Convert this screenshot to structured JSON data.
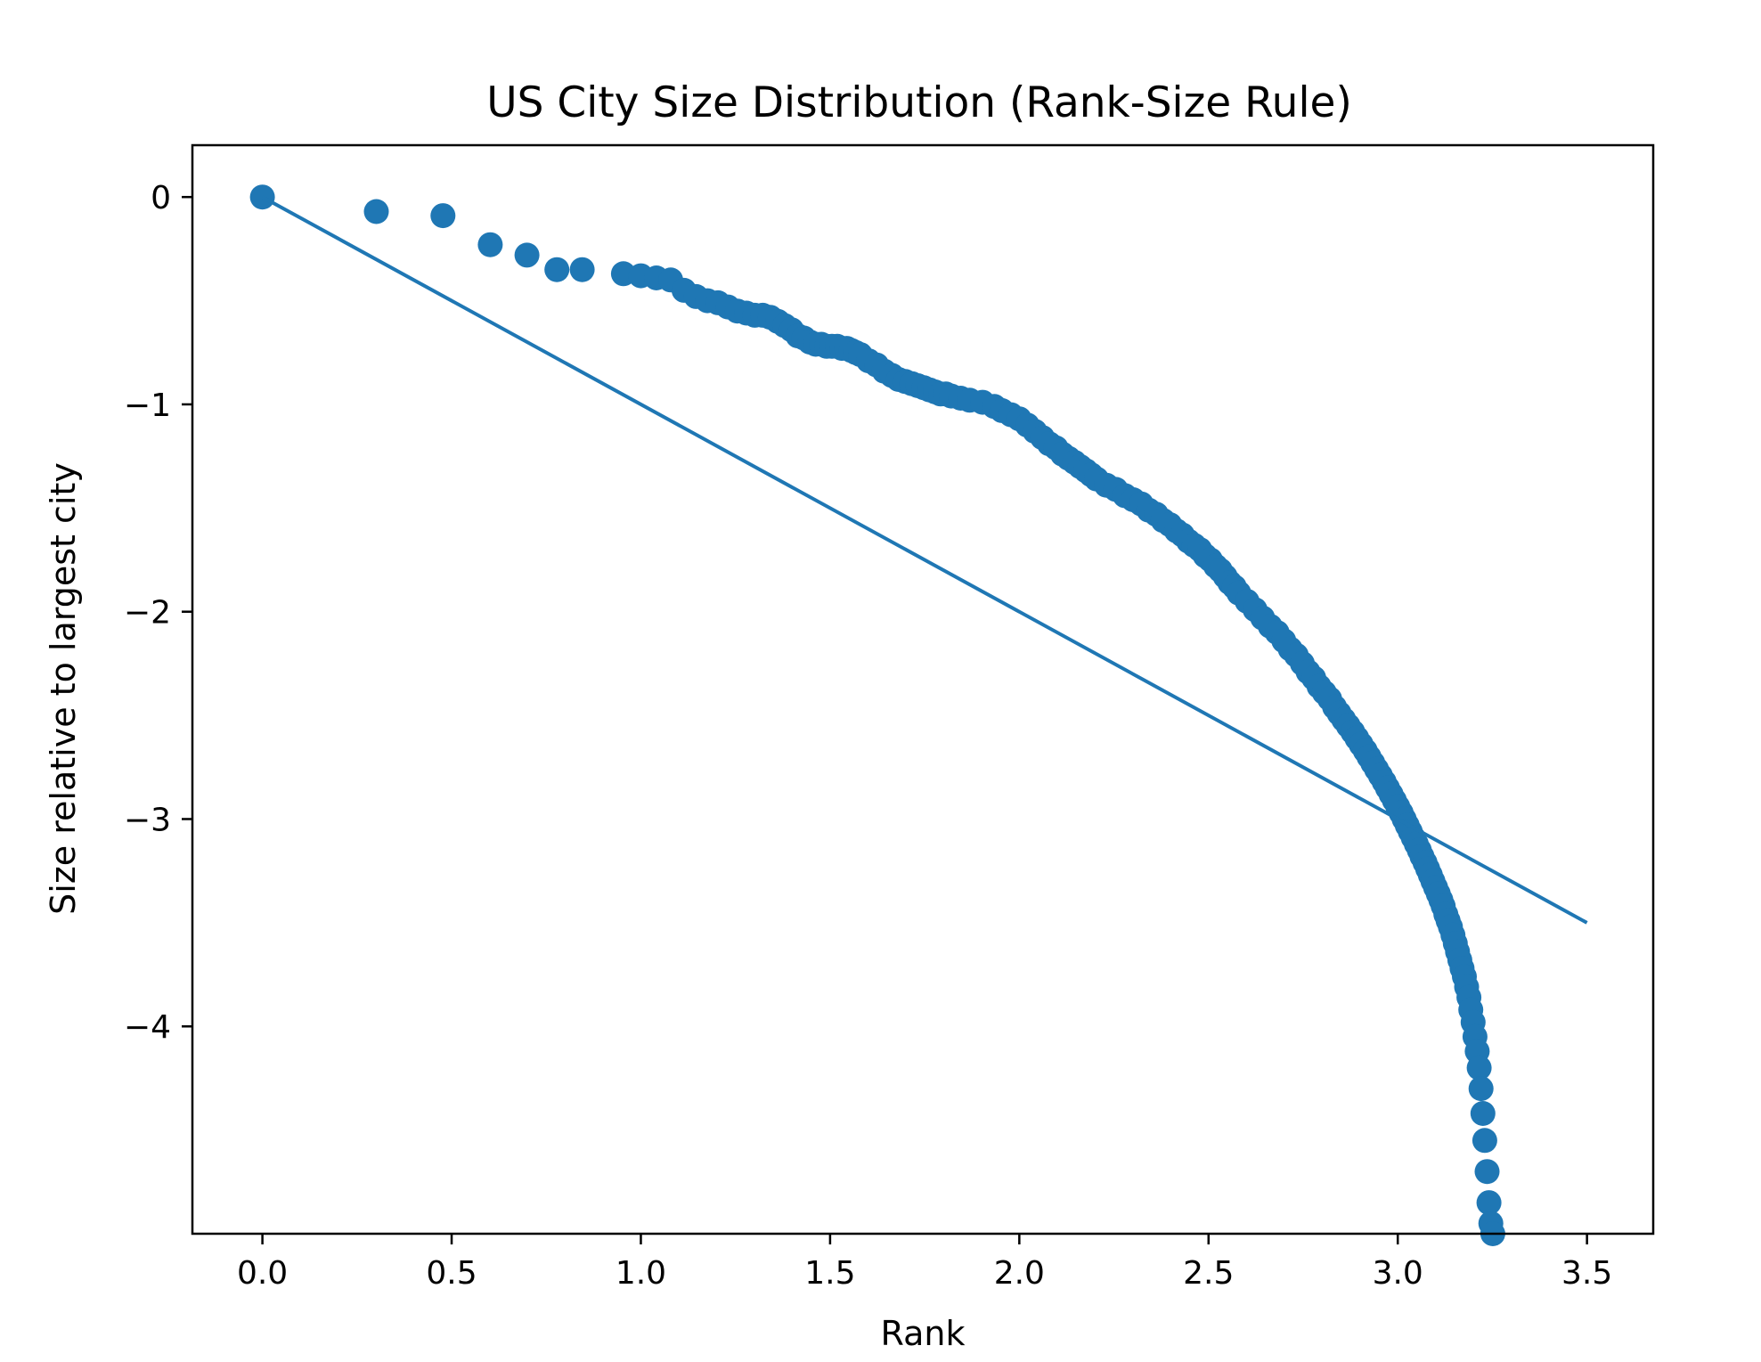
{
  "chart_data": {
    "type": "scatter",
    "title": "US City Size Distribution (Rank-Size Rule)",
    "xlabel": "Rank",
    "ylabel": "Size relative to largest city",
    "xlim": [
      -0.185,
      3.675
    ],
    "ylim": [
      -5.0,
      0.25
    ],
    "x_ticks": [
      0.0,
      0.5,
      1.0,
      1.5,
      2.0,
      2.5,
      3.0,
      3.5
    ],
    "x_tick_labels": [
      "0.0",
      "0.5",
      "1.0",
      "1.5",
      "2.0",
      "2.5",
      "3.0",
      "3.5"
    ],
    "y_ticks": [
      0,
      -1,
      -2,
      -3,
      -4
    ],
    "y_tick_labels": [
      "0",
      "−1",
      "−2",
      "−3",
      "−4"
    ],
    "grid": false,
    "legend": "none",
    "colors": {
      "series": "#1f77b4",
      "axes": "#000000",
      "background": "#ffffff"
    },
    "series": [
      {
        "type": "scatter",
        "marker": "circle",
        "color": "#1f77b4",
        "points": [
          [
            0.0,
            0.0
          ],
          [
            0.301,
            -0.07
          ],
          [
            0.477,
            -0.09
          ],
          [
            0.602,
            -0.23
          ],
          [
            0.699,
            -0.28
          ],
          [
            0.778,
            -0.35
          ],
          [
            0.845,
            -0.35
          ],
          [
            0.954,
            -0.37
          ],
          [
            1.0,
            -0.38
          ],
          [
            1.041,
            -0.39
          ],
          [
            1.079,
            -0.4
          ],
          [
            1.114,
            -0.45
          ],
          [
            1.146,
            -0.48
          ],
          [
            1.176,
            -0.5
          ],
          [
            1.204,
            -0.51
          ],
          [
            1.23,
            -0.53
          ],
          [
            1.255,
            -0.55
          ],
          [
            1.279,
            -0.56
          ],
          [
            1.301,
            -0.57
          ],
          [
            1.322,
            -0.57
          ],
          [
            1.342,
            -0.58
          ],
          [
            1.362,
            -0.6
          ],
          [
            1.38,
            -0.62
          ],
          [
            1.398,
            -0.64
          ],
          [
            1.415,
            -0.67
          ],
          [
            1.431,
            -0.68
          ],
          [
            1.447,
            -0.7
          ],
          [
            1.462,
            -0.71
          ],
          [
            1.477,
            -0.71
          ],
          [
            1.491,
            -0.72
          ],
          [
            1.505,
            -0.72
          ],
          [
            1.519,
            -0.72
          ],
          [
            1.531,
            -0.73
          ],
          [
            1.544,
            -0.73
          ],
          [
            1.556,
            -0.74
          ],
          [
            1.568,
            -0.75
          ],
          [
            1.58,
            -0.76
          ],
          [
            1.602,
            -0.79
          ],
          [
            1.623,
            -0.81
          ],
          [
            1.643,
            -0.84
          ],
          [
            1.663,
            -0.86
          ],
          [
            1.681,
            -0.88
          ],
          [
            1.699,
            -0.89
          ],
          [
            1.716,
            -0.9
          ],
          [
            1.732,
            -0.91
          ],
          [
            1.748,
            -0.92
          ],
          [
            1.763,
            -0.93
          ],
          [
            1.778,
            -0.94
          ],
          [
            1.792,
            -0.95
          ],
          [
            1.806,
            -0.95
          ],
          [
            1.82,
            -0.96
          ],
          [
            1.845,
            -0.97
          ],
          [
            1.869,
            -0.98
          ],
          [
            1.903,
            -0.99
          ],
          [
            1.934,
            -1.01
          ],
          [
            1.954,
            -1.03
          ],
          [
            1.978,
            -1.05
          ],
          [
            2.0,
            -1.07
          ],
          [
            2.021,
            -1.1
          ],
          [
            2.041,
            -1.13
          ],
          [
            2.061,
            -1.16
          ],
          [
            2.079,
            -1.19
          ],
          [
            2.097,
            -1.21
          ],
          [
            2.114,
            -1.24
          ],
          [
            2.13,
            -1.26
          ],
          [
            2.146,
            -1.28
          ],
          [
            2.161,
            -1.3
          ],
          [
            2.176,
            -1.32
          ],
          [
            2.19,
            -1.34
          ],
          [
            2.204,
            -1.36
          ],
          [
            2.23,
            -1.39
          ],
          [
            2.255,
            -1.41
          ],
          [
            2.279,
            -1.44
          ],
          [
            2.301,
            -1.46
          ],
          [
            2.322,
            -1.48
          ],
          [
            2.342,
            -1.51
          ],
          [
            2.362,
            -1.53
          ],
          [
            2.38,
            -1.56
          ],
          [
            2.398,
            -1.58
          ],
          [
            2.415,
            -1.61
          ],
          [
            2.431,
            -1.63
          ],
          [
            2.447,
            -1.66
          ],
          [
            2.462,
            -1.68
          ],
          [
            2.477,
            -1.7
          ],
          [
            2.491,
            -1.73
          ],
          [
            2.505,
            -1.75
          ],
          [
            2.519,
            -1.78
          ],
          [
            2.531,
            -1.8
          ],
          [
            2.544,
            -1.83
          ],
          [
            2.556,
            -1.86
          ],
          [
            2.568,
            -1.88
          ],
          [
            2.58,
            -1.91
          ],
          [
            2.602,
            -1.95
          ],
          [
            2.623,
            -1.99
          ],
          [
            2.643,
            -2.03
          ],
          [
            2.663,
            -2.07
          ],
          [
            2.681,
            -2.1
          ],
          [
            2.699,
            -2.14
          ],
          [
            2.716,
            -2.18
          ],
          [
            2.732,
            -2.21
          ],
          [
            2.748,
            -2.25
          ],
          [
            2.763,
            -2.29
          ],
          [
            2.778,
            -2.32
          ],
          [
            2.792,
            -2.36
          ],
          [
            2.806,
            -2.39
          ],
          [
            2.82,
            -2.42
          ],
          [
            2.833,
            -2.46
          ],
          [
            2.845,
            -2.49
          ],
          [
            2.857,
            -2.52
          ],
          [
            2.869,
            -2.55
          ],
          [
            2.881,
            -2.58
          ],
          [
            2.892,
            -2.61
          ],
          [
            2.903,
            -2.64
          ],
          [
            2.914,
            -2.67
          ],
          [
            2.924,
            -2.7
          ],
          [
            2.934,
            -2.73
          ],
          [
            2.944,
            -2.76
          ],
          [
            2.954,
            -2.79
          ],
          [
            2.964,
            -2.82
          ],
          [
            2.973,
            -2.85
          ],
          [
            2.982,
            -2.88
          ],
          [
            2.991,
            -2.91
          ],
          [
            3.0,
            -2.94
          ],
          [
            3.009,
            -2.97
          ],
          [
            3.017,
            -3.0
          ],
          [
            3.025,
            -3.03
          ],
          [
            3.033,
            -3.06
          ],
          [
            3.041,
            -3.09
          ],
          [
            3.049,
            -3.12
          ],
          [
            3.057,
            -3.15
          ],
          [
            3.064,
            -3.18
          ],
          [
            3.072,
            -3.21
          ],
          [
            3.079,
            -3.24
          ],
          [
            3.086,
            -3.27
          ],
          [
            3.093,
            -3.3
          ],
          [
            3.1,
            -3.33
          ],
          [
            3.107,
            -3.36
          ],
          [
            3.114,
            -3.39
          ],
          [
            3.12,
            -3.42
          ],
          [
            3.127,
            -3.46
          ],
          [
            3.133,
            -3.49
          ],
          [
            3.139,
            -3.52
          ],
          [
            3.146,
            -3.56
          ],
          [
            3.152,
            -3.6
          ],
          [
            3.158,
            -3.64
          ],
          [
            3.164,
            -3.68
          ],
          [
            3.17,
            -3.72
          ],
          [
            3.176,
            -3.76
          ],
          [
            3.182,
            -3.81
          ],
          [
            3.188,
            -3.86
          ],
          [
            3.193,
            -3.92
          ],
          [
            3.199,
            -3.98
          ],
          [
            3.204,
            -4.05
          ],
          [
            3.21,
            -4.12
          ],
          [
            3.215,
            -4.2
          ],
          [
            3.22,
            -4.3
          ],
          [
            3.225,
            -4.42
          ],
          [
            3.23,
            -4.55
          ],
          [
            3.236,
            -4.7
          ],
          [
            3.241,
            -4.85
          ],
          [
            3.246,
            -4.95
          ],
          [
            3.251,
            -5.0
          ]
        ]
      },
      {
        "type": "line",
        "color": "#1f77b4",
        "points": [
          [
            0.0,
            0.0
          ],
          [
            3.5,
            -3.5
          ]
        ]
      }
    ]
  }
}
